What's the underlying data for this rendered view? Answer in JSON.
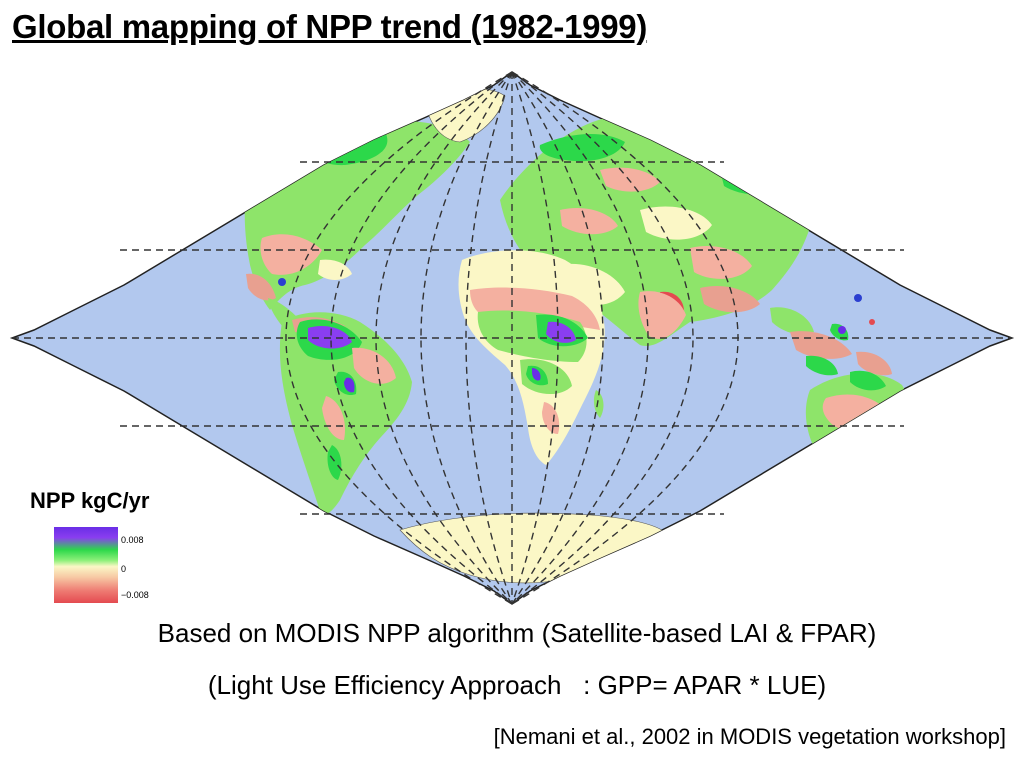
{
  "title": "Global mapping of NPP trend (1982-1999)",
  "map": {
    "projection": "sinusoidal",
    "colors": {
      "ocean": "#b2c8ee",
      "desert": "#fbf7c6",
      "green": "#8ee46a",
      "bright_green": "#2cd84a",
      "purple": "#8a3ef0",
      "pink": "#f4b0a0",
      "red": "#e44a50",
      "grid": "#333333"
    }
  },
  "legend": {
    "title": "NPP kgC/yr",
    "max_label": "0.008",
    "zero_label": "0",
    "min_label": "−0.008"
  },
  "captions": {
    "line1": "Based on MODIS NPP algorithm (Satellite-based LAI & FPAR)",
    "line2": "(Light Use Efficiency Approach   : GPP= APAR * LUE)"
  },
  "citation": "[Nemani et al., 2002 in MODIS vegetation workshop]"
}
